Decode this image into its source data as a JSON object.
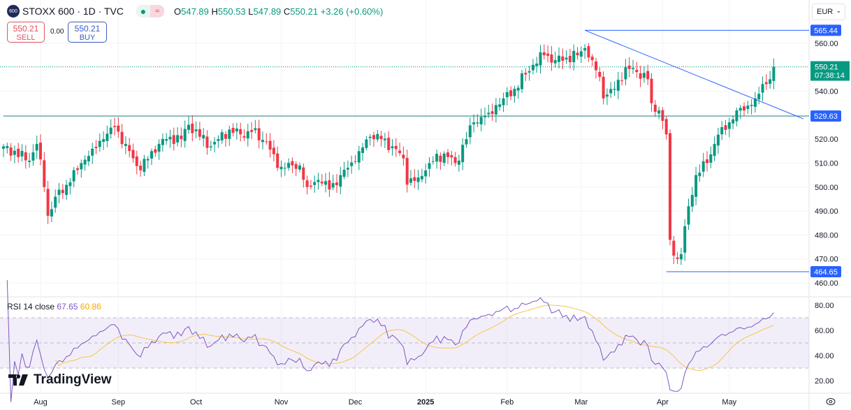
{
  "header": {
    "logo_text": "600",
    "symbol": "STOXX 600 · 1D · TVC",
    "open_label": "O",
    "open": "547.89",
    "high_label": "H",
    "high": "550.53",
    "low_label": "L",
    "low": "547.89",
    "close_label": "C",
    "close": "550.21",
    "change": "+3.26 (+0.60%)"
  },
  "trade": {
    "sell_price": "550.21",
    "sell_label": "SELL",
    "spread": "0.00",
    "buy_price": "550.21",
    "buy_label": "BUY"
  },
  "currency": "EUR",
  "rsi": {
    "label": "RSI 14 close",
    "value": "67.65",
    "ma": "60.86"
  },
  "watermark": "TradingView",
  "colors": {
    "up": "#089981",
    "down": "#f23645",
    "line": "#2962ff",
    "rsi": "#7e57c2",
    "rsi_ma": "#f7c548"
  },
  "chart_data": {
    "type": "candlestick",
    "price_axis": {
      "min": 460,
      "max": 560,
      "step": 10,
      "ticks": [
        "560.00",
        "540.00",
        "520.00",
        "510.00",
        "500.00",
        "490.00",
        "480.00",
        "470.00",
        "460.00"
      ]
    },
    "rsi_axis": {
      "ticks": [
        "80.00",
        "60.00",
        "40.00",
        "20.00"
      ],
      "bands": [
        30,
        50,
        70
      ]
    },
    "time_labels": [
      {
        "label": "Aug",
        "bar": 10
      },
      {
        "label": "Sep",
        "bar": 31
      },
      {
        "label": "Oct",
        "bar": 52
      },
      {
        "label": "Nov",
        "bar": 75
      },
      {
        "label": "Dec",
        "bar": 95
      },
      {
        "label": "2025",
        "bar": 114
      },
      {
        "label": "Feb",
        "bar": 136
      },
      {
        "label": "Mar",
        "bar": 156
      },
      {
        "label": "Apr",
        "bar": 178
      },
      {
        "label": "May",
        "bar": 196
      }
    ],
    "close_keypoints": [
      [
        0,
        517
      ],
      [
        7,
        511
      ],
      [
        9,
        518
      ],
      [
        11,
        500
      ],
      [
        12,
        488
      ],
      [
        14,
        496
      ],
      [
        18,
        502
      ],
      [
        21,
        510
      ],
      [
        24,
        516
      ],
      [
        27,
        520
      ],
      [
        30,
        525
      ],
      [
        33,
        518
      ],
      [
        35,
        512
      ],
      [
        37,
        507
      ],
      [
        40,
        515
      ],
      [
        42,
        518
      ],
      [
        45,
        521
      ],
      [
        48,
        520
      ],
      [
        50,
        526
      ],
      [
        53,
        521
      ],
      [
        56,
        517
      ],
      [
        58,
        520
      ],
      [
        61,
        524
      ],
      [
        64,
        522
      ],
      [
        67,
        523
      ],
      [
        71,
        519
      ],
      [
        74,
        508
      ],
      [
        76,
        508
      ],
      [
        80,
        509
      ],
      [
        82,
        500
      ],
      [
        85,
        503
      ],
      [
        88,
        499
      ],
      [
        91,
        505
      ],
      [
        93,
        508
      ],
      [
        96,
        515
      ],
      [
        99,
        521
      ],
      [
        102,
        520
      ],
      [
        105,
        517
      ],
      [
        108,
        512
      ],
      [
        109,
        501
      ],
      [
        112,
        504
      ],
      [
        115,
        510
      ],
      [
        119,
        514
      ],
      [
        122,
        510
      ],
      [
        125,
        520
      ],
      [
        127,
        527
      ],
      [
        131,
        531
      ],
      [
        135,
        537
      ],
      [
        138,
        541
      ],
      [
        141,
        547
      ],
      [
        143,
        551
      ],
      [
        146,
        555
      ],
      [
        149,
        553
      ],
      [
        152,
        554
      ],
      [
        155,
        555
      ],
      [
        157,
        558
      ],
      [
        159,
        553
      ],
      [
        161,
        546
      ],
      [
        162,
        537
      ],
      [
        165,
        541
      ],
      [
        168,
        550
      ],
      [
        171,
        548
      ],
      [
        174,
        545
      ],
      [
        175,
        535
      ],
      [
        177,
        532
      ],
      [
        179,
        522
      ],
      [
        180,
        478
      ],
      [
        182,
        470
      ],
      [
        183,
        472
      ],
      [
        185,
        492
      ],
      [
        187,
        505
      ],
      [
        190,
        510
      ],
      [
        192,
        518
      ],
      [
        194,
        525
      ],
      [
        196,
        527
      ],
      [
        198,
        532
      ],
      [
        201,
        534
      ],
      [
        203,
        537
      ],
      [
        205,
        543
      ],
      [
        207,
        545
      ],
      [
        208,
        550.21
      ]
    ],
    "levels": [
      {
        "label": "565.44",
        "value": 565.44,
        "from_bar": 157
      },
      {
        "label": "529.63",
        "value": 529.63,
        "from_bar": 0
      },
      {
        "label": "464.65",
        "value": 464.65,
        "from_bar": 179
      }
    ],
    "trendline": {
      "from": [
        157,
        565.44
      ],
      "to": [
        216,
        528.5
      ]
    },
    "last": {
      "price": "550.21",
      "countdown": "07:38:14",
      "value": 550.21
    }
  }
}
